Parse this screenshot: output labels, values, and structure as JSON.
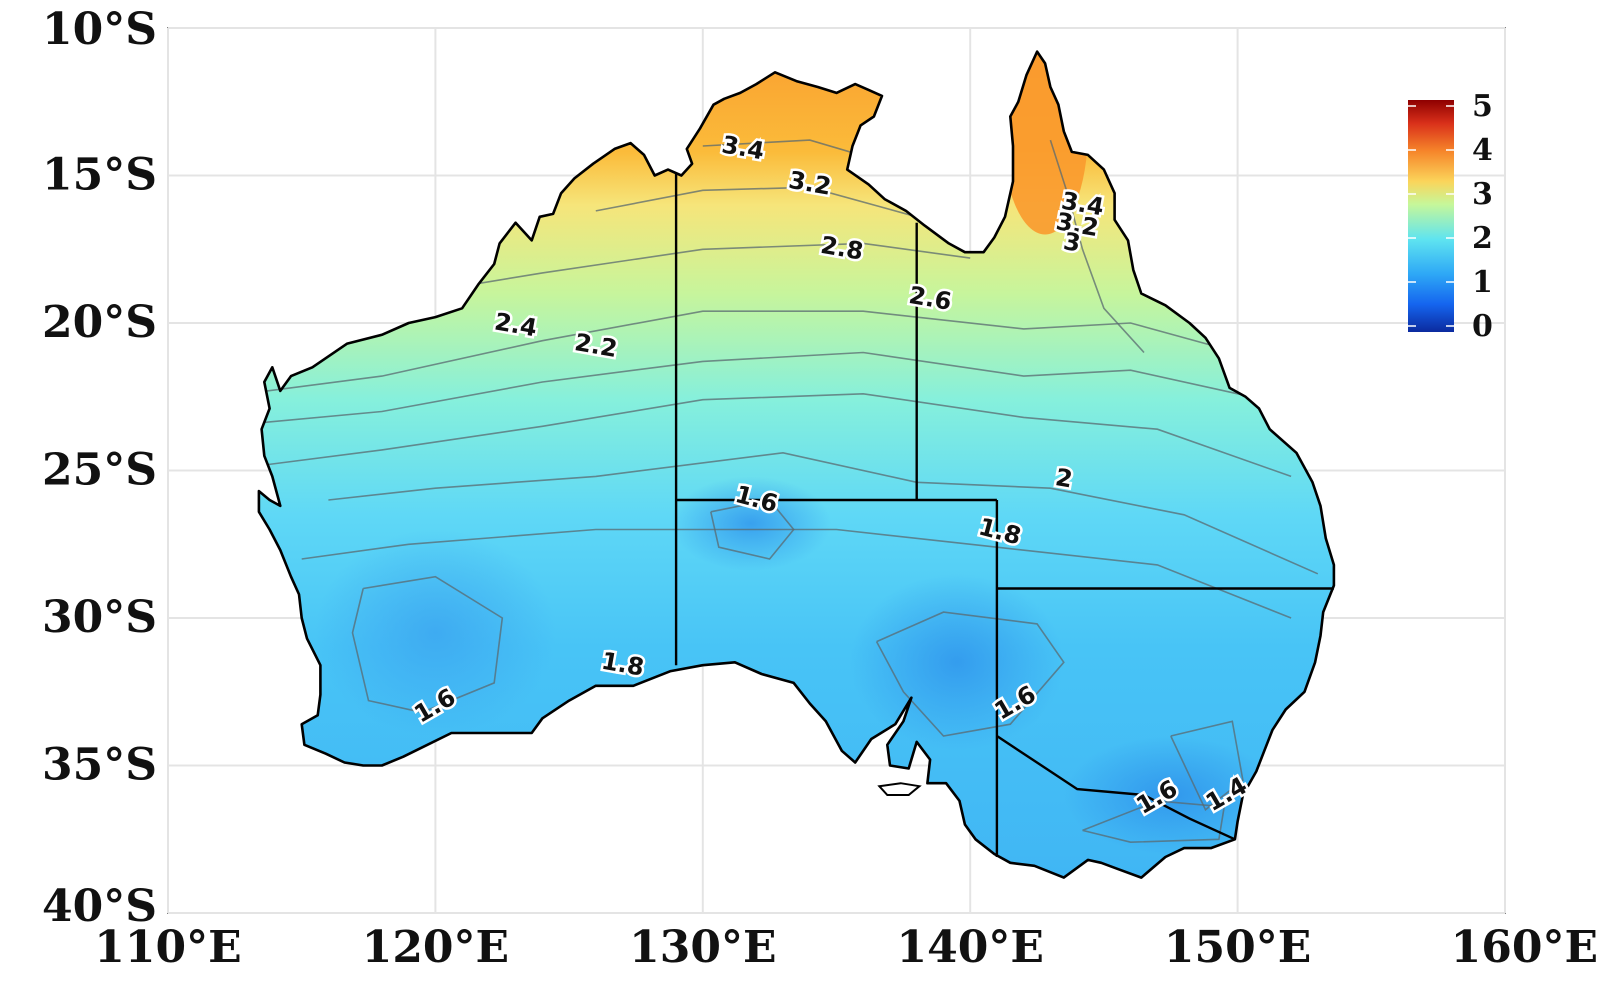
{
  "map": {
    "region": "Australia",
    "projection": "lon-lat",
    "x_range": [
      110,
      160
    ],
    "y_range": [
      -40,
      -10
    ],
    "x_ticks": [
      "110°E",
      "120°E",
      "130°E",
      "140°E",
      "150°E",
      "160°E"
    ],
    "y_ticks": [
      "10°S",
      "15°S",
      "20°S",
      "25°S",
      "30°S",
      "35°S",
      "40°S"
    ],
    "grid": true
  },
  "colorbar": {
    "min": 0,
    "max": 5,
    "ticks": [
      "5",
      "4",
      "3",
      "2",
      "1",
      "0"
    ],
    "colors": [
      "#08308f",
      "#1a6ff0",
      "#3fb5f5",
      "#7ff0e0",
      "#e8f59a",
      "#f9a43a",
      "#e2431a",
      "#8e0000"
    ],
    "placement": "top-right"
  },
  "contour_labels": [
    {
      "text": "3.4",
      "lon": 131.5,
      "lat": -14.1
    },
    {
      "text": "3.2",
      "lon": 134.0,
      "lat": -15.3
    },
    {
      "text": "2.8",
      "lon": 135.2,
      "lat": -17.5
    },
    {
      "text": "2.6",
      "lon": 138.5,
      "lat": -19.2
    },
    {
      "text": "3.4",
      "lon": 144.2,
      "lat": -16.0
    },
    {
      "text": "3.2",
      "lon": 144.0,
      "lat": -16.7
    },
    {
      "text": "3",
      "lon": 143.8,
      "lat": -17.3
    },
    {
      "text": "2.4",
      "lon": 123.0,
      "lat": -20.1
    },
    {
      "text": "2.2",
      "lon": 126.0,
      "lat": -20.8
    },
    {
      "text": "2",
      "lon": 143.5,
      "lat": -25.3
    },
    {
      "text": "1.6",
      "lon": 132.0,
      "lat": -26.0
    },
    {
      "text": "1.8",
      "lon": 141.1,
      "lat": -27.1
    },
    {
      "text": "1.8",
      "lon": 127.0,
      "lat": -31.6
    },
    {
      "text": "1.6",
      "lon": 120.0,
      "lat": -33.0
    },
    {
      "text": "1.6",
      "lon": 141.7,
      "lat": -32.9
    },
    {
      "text": "1.6",
      "lon": 147.0,
      "lat": -36.1
    },
    {
      "text": "1.4",
      "lon": 149.6,
      "lat": -36.0
    }
  ],
  "colors": {
    "coastline": "#000000",
    "grid": "#e4e4e4",
    "contour": "#5a6a70"
  }
}
